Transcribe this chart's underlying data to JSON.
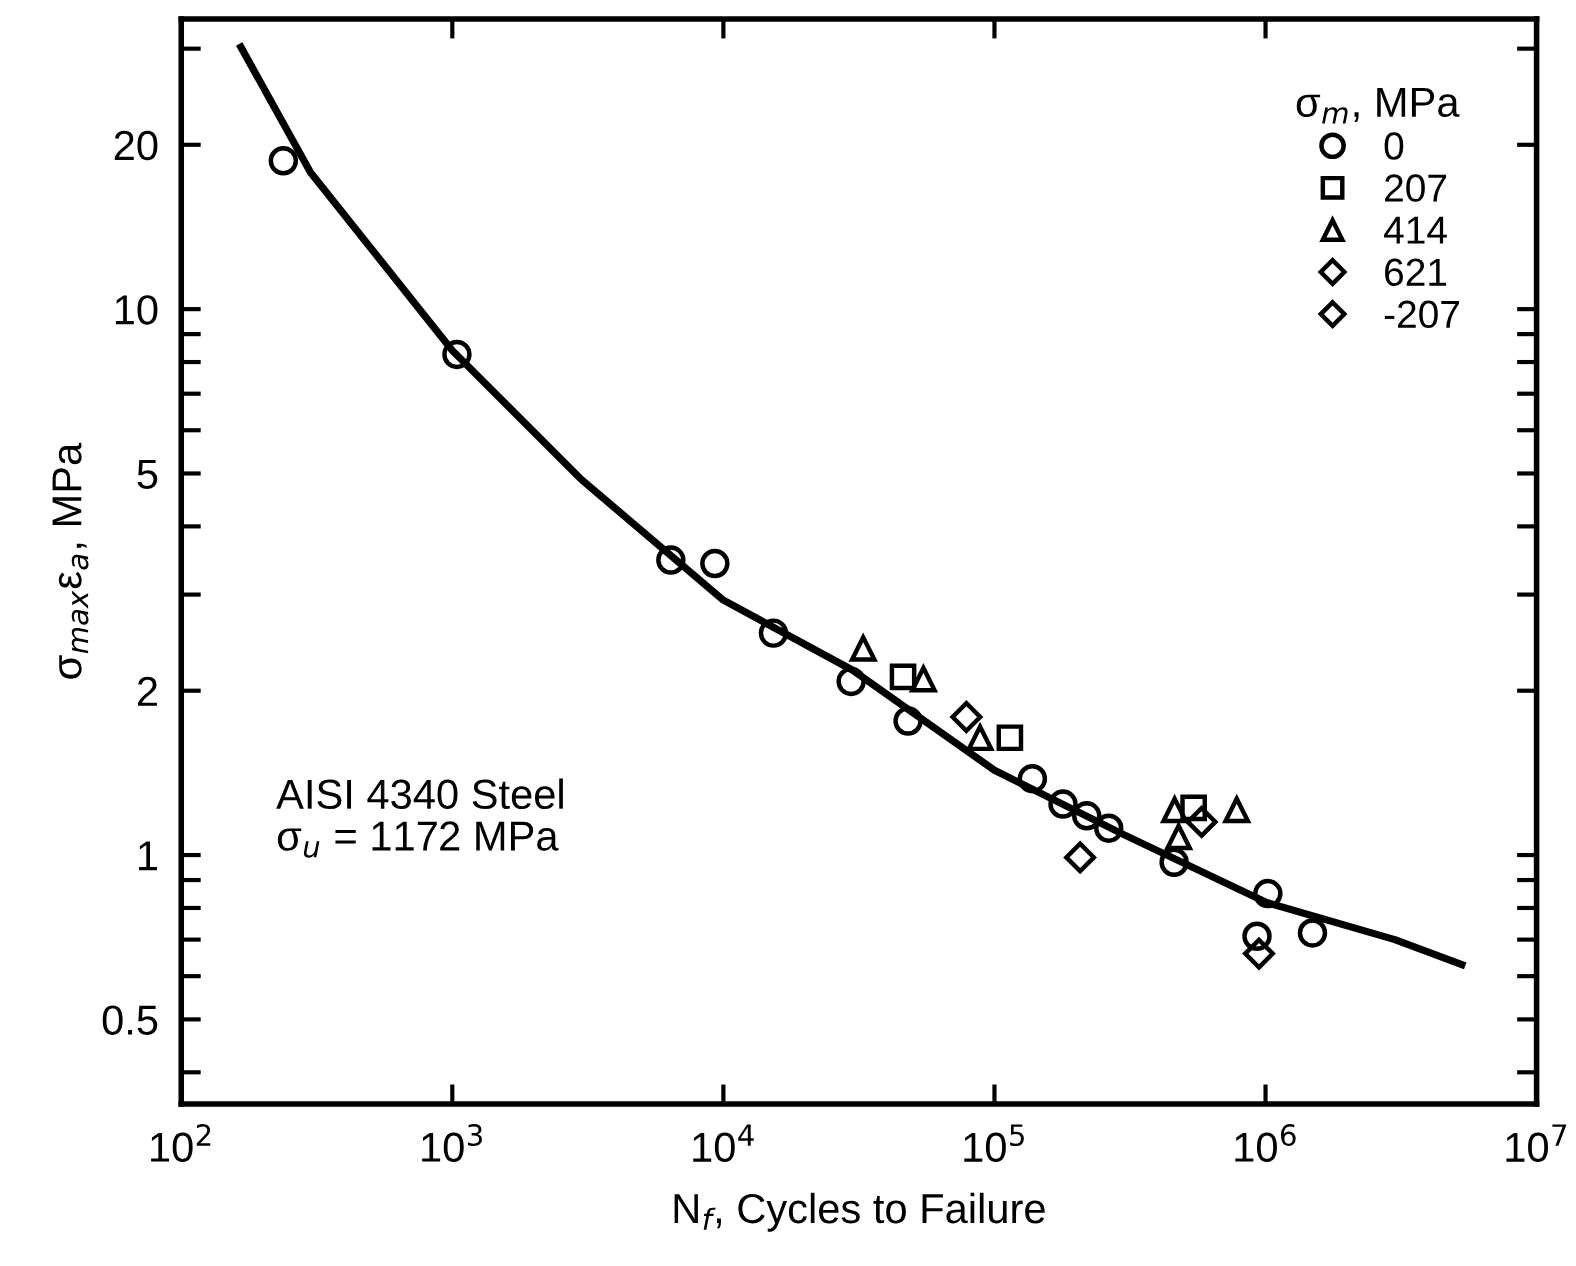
{
  "chart_data": {
    "type": "scatter",
    "xlabel": "N$_{f}$, Cycles to Failure",
    "ylabel": "σ$_{max}$ε$_{a}$, MPa",
    "legend_title": "σ$_{m}$, MPa",
    "annotations": [
      "AISI 4340 Steel\nσ$_{u}$ = 1172 MPa"
    ],
    "log": "xy",
    "xlim": [
      100,
      10000000
    ],
    "ylim": [
      0.35,
      34
    ],
    "xticks": [
      {
        "value": 100,
        "label": "10$^{2}$"
      },
      {
        "value": 1000,
        "label": "10$^{3}$"
      },
      {
        "value": 10000,
        "label": "10$^{4}$"
      },
      {
        "value": 100000,
        "label": "10$^{5}$"
      },
      {
        "value": 1000000,
        "label": "10$^{6}$"
      },
      {
        "value": 10000000,
        "label": "10$^{7}$"
      }
    ],
    "yticks": [
      {
        "value": 0.4,
        "label": null
      },
      0.5,
      {
        "value": 0.6,
        "label": null
      },
      {
        "value": 0.7,
        "label": null
      },
      {
        "value": 0.8,
        "label": null
      },
      {
        "value": 0.9,
        "label": null
      },
      1,
      2,
      {
        "value": 3,
        "label": null
      },
      {
        "value": 4,
        "label": null
      },
      5,
      {
        "value": 6,
        "label": null
      },
      {
        "value": 7,
        "label": null
      },
      {
        "value": 8,
        "label": null
      },
      {
        "value": 9,
        "label": null
      },
      10,
      20,
      {
        "value": 30,
        "label": null
      }
    ],
    "grid": false,
    "legend": "top right",
    "series": [
      {
        "name": "0",
        "marker": "circle",
        "color": "#000000",
        "x": [
          238,
          1040,
          6400,
          9300,
          15300,
          29600,
          48000,
          138000,
          179000,
          219000,
          264000,
          460000,
          1020000,
          930000,
          1490000
        ],
        "values": [
          18.7,
          8.26,
          3.47,
          3.42,
          2.55,
          2.08,
          1.76,
          1.38,
          1.24,
          1.18,
          1.12,
          0.97,
          0.85,
          0.71,
          0.72
        ]
      },
      {
        "name": "207",
        "marker": "square",
        "color": "#000000",
        "x": [
          46000,
          114000,
          543000
        ],
        "values": [
          2.12,
          1.64,
          1.22
        ]
      },
      {
        "name": "414",
        "marker": "triangle",
        "color": "#000000",
        "x": [
          32800,
          54700,
          88500,
          462000,
          478000,
          783000
        ],
        "values": [
          2.39,
          2.1,
          1.64,
          1.21,
          1.08,
          1.21
        ]
      },
      {
        "name": "621",
        "marker": "diamond",
        "color": "#000000",
        "x": [
          78800,
          581000
        ],
        "values": [
          1.79,
          1.15
        ]
      },
      {
        "name": "-207",
        "marker": "diamond",
        "color": "#000000",
        "x": [
          207000,
          946000
        ],
        "values": [
          0.99,
          0.66
        ]
      },
      {
        "type": "line",
        "color": "#000000",
        "line_style": "solid",
        "x": [
          166,
          300,
          1000,
          3000,
          10000,
          30000,
          100000,
          300000,
          1000000,
          3000000,
          5300000
        ],
        "values": [
          30.2,
          17.8,
          8.4,
          4.87,
          2.93,
          2.18,
          1.43,
          1.09,
          0.82,
          0.7,
          0.63
        ]
      }
    ]
  }
}
